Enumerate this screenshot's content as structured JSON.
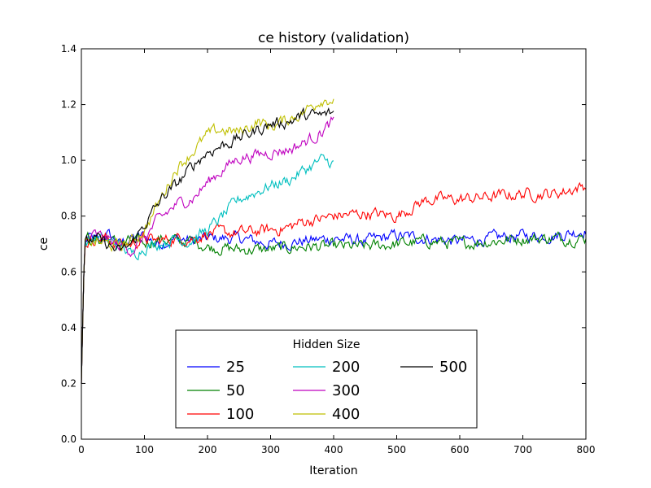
{
  "chart_data": {
    "type": "line",
    "title": "ce history (validation)",
    "xlabel": "Iteration",
    "ylabel": "ce",
    "xlim": [
      0,
      800
    ],
    "ylim": [
      0.0,
      1.4
    ],
    "x_ticks": [
      "0",
      "100",
      "200",
      "300",
      "400",
      "500",
      "600",
      "700",
      "800"
    ],
    "y_ticks": [
      "0.0",
      "0.2",
      "0.4",
      "0.6",
      "0.8",
      "1.0",
      "1.2",
      "1.4"
    ],
    "grid": false,
    "legend": {
      "title": "Hidden Size",
      "placement": "lower center",
      "columns": 3
    },
    "series": [
      {
        "name": "25",
        "color": "#0000ff",
        "points": [
          [
            0,
            0.2
          ],
          [
            5,
            0.7
          ],
          [
            10,
            0.72
          ],
          [
            20,
            0.72
          ],
          [
            30,
            0.7
          ],
          [
            40,
            0.74
          ],
          [
            60,
            0.7
          ],
          [
            80,
            0.72
          ],
          [
            100,
            0.73
          ],
          [
            120,
            0.7
          ],
          [
            150,
            0.72
          ],
          [
            180,
            0.71
          ],
          [
            200,
            0.72
          ],
          [
            250,
            0.72
          ],
          [
            300,
            0.7
          ],
          [
            350,
            0.71
          ],
          [
            400,
            0.72
          ],
          [
            450,
            0.71
          ],
          [
            500,
            0.73
          ],
          [
            550,
            0.72
          ],
          [
            600,
            0.71
          ],
          [
            650,
            0.72
          ],
          [
            700,
            0.73
          ],
          [
            750,
            0.73
          ],
          [
            800,
            0.75
          ]
        ]
      },
      {
        "name": "50",
        "color": "#008000",
        "points": [
          [
            0,
            0.2
          ],
          [
            5,
            0.7
          ],
          [
            10,
            0.72
          ],
          [
            20,
            0.71
          ],
          [
            40,
            0.72
          ],
          [
            60,
            0.7
          ],
          [
            80,
            0.71
          ],
          [
            100,
            0.7
          ],
          [
            120,
            0.72
          ],
          [
            150,
            0.71
          ],
          [
            180,
            0.71
          ],
          [
            200,
            0.69
          ],
          [
            250,
            0.68
          ],
          [
            300,
            0.68
          ],
          [
            350,
            0.69
          ],
          [
            400,
            0.69
          ],
          [
            450,
            0.69
          ],
          [
            500,
            0.7
          ],
          [
            550,
            0.71
          ],
          [
            600,
            0.7
          ],
          [
            650,
            0.71
          ],
          [
            700,
            0.72
          ],
          [
            750,
            0.72
          ],
          [
            800,
            0.72
          ]
        ]
      },
      {
        "name": "100",
        "color": "#ff0000",
        "points": [
          [
            0,
            0.2
          ],
          [
            5,
            0.7
          ],
          [
            10,
            0.71
          ],
          [
            20,
            0.72
          ],
          [
            40,
            0.72
          ],
          [
            60,
            0.7
          ],
          [
            80,
            0.7
          ],
          [
            100,
            0.72
          ],
          [
            120,
            0.71
          ],
          [
            150,
            0.72
          ],
          [
            180,
            0.72
          ],
          [
            200,
            0.74
          ],
          [
            250,
            0.74
          ],
          [
            300,
            0.75
          ],
          [
            330,
            0.76
          ],
          [
            350,
            0.78
          ],
          [
            380,
            0.79
          ],
          [
            400,
            0.8
          ],
          [
            450,
            0.81
          ],
          [
            500,
            0.8
          ],
          [
            530,
            0.84
          ],
          [
            550,
            0.86
          ],
          [
            600,
            0.86
          ],
          [
            650,
            0.87
          ],
          [
            700,
            0.88
          ],
          [
            750,
            0.88
          ],
          [
            800,
            0.91
          ]
        ]
      },
      {
        "name": "200",
        "color": "#00bfbf",
        "points": [
          [
            0,
            0.2
          ],
          [
            5,
            0.7
          ],
          [
            20,
            0.72
          ],
          [
            40,
            0.71
          ],
          [
            60,
            0.7
          ],
          [
            80,
            0.66
          ],
          [
            100,
            0.69
          ],
          [
            120,
            0.7
          ],
          [
            150,
            0.72
          ],
          [
            170,
            0.71
          ],
          [
            200,
            0.75
          ],
          [
            220,
            0.79
          ],
          [
            250,
            0.86
          ],
          [
            280,
            0.89
          ],
          [
            300,
            0.91
          ],
          [
            330,
            0.93
          ],
          [
            350,
            0.96
          ],
          [
            380,
            1.0
          ],
          [
            400,
            0.99
          ]
        ]
      },
      {
        "name": "300",
        "color": "#bf00bf",
        "points": [
          [
            0,
            0.2
          ],
          [
            5,
            0.7
          ],
          [
            20,
            0.73
          ],
          [
            40,
            0.72
          ],
          [
            60,
            0.69
          ],
          [
            80,
            0.68
          ],
          [
            100,
            0.72
          ],
          [
            120,
            0.78
          ],
          [
            150,
            0.84
          ],
          [
            180,
            0.87
          ],
          [
            200,
            0.92
          ],
          [
            220,
            0.96
          ],
          [
            250,
            1.01
          ],
          [
            280,
            1.02
          ],
          [
            300,
            1.03
          ],
          [
            330,
            1.04
          ],
          [
            350,
            1.06
          ],
          [
            380,
            1.1
          ],
          [
            400,
            1.14
          ]
        ]
      },
      {
        "name": "400",
        "color": "#bfbf00",
        "points": [
          [
            0,
            0.2
          ],
          [
            5,
            0.7
          ],
          [
            20,
            0.71
          ],
          [
            40,
            0.7
          ],
          [
            60,
            0.69
          ],
          [
            80,
            0.71
          ],
          [
            100,
            0.75
          ],
          [
            130,
            0.88
          ],
          [
            150,
            0.97
          ],
          [
            180,
            1.04
          ],
          [
            200,
            1.09
          ],
          [
            220,
            1.11
          ],
          [
            250,
            1.1
          ],
          [
            280,
            1.14
          ],
          [
            300,
            1.12
          ],
          [
            330,
            1.15
          ],
          [
            350,
            1.17
          ],
          [
            380,
            1.22
          ],
          [
            400,
            1.22
          ]
        ]
      },
      {
        "name": "500",
        "color": "#000000",
        "points": [
          [
            0,
            0.2
          ],
          [
            5,
            0.7
          ],
          [
            20,
            0.72
          ],
          [
            40,
            0.7
          ],
          [
            60,
            0.67
          ],
          [
            80,
            0.7
          ],
          [
            100,
            0.77
          ],
          [
            130,
            0.87
          ],
          [
            150,
            0.91
          ],
          [
            180,
            0.99
          ],
          [
            200,
            1.03
          ],
          [
            220,
            1.05
          ],
          [
            250,
            1.08
          ],
          [
            280,
            1.11
          ],
          [
            300,
            1.13
          ],
          [
            330,
            1.14
          ],
          [
            350,
            1.16
          ],
          [
            380,
            1.16
          ],
          [
            400,
            1.17
          ]
        ]
      }
    ]
  }
}
